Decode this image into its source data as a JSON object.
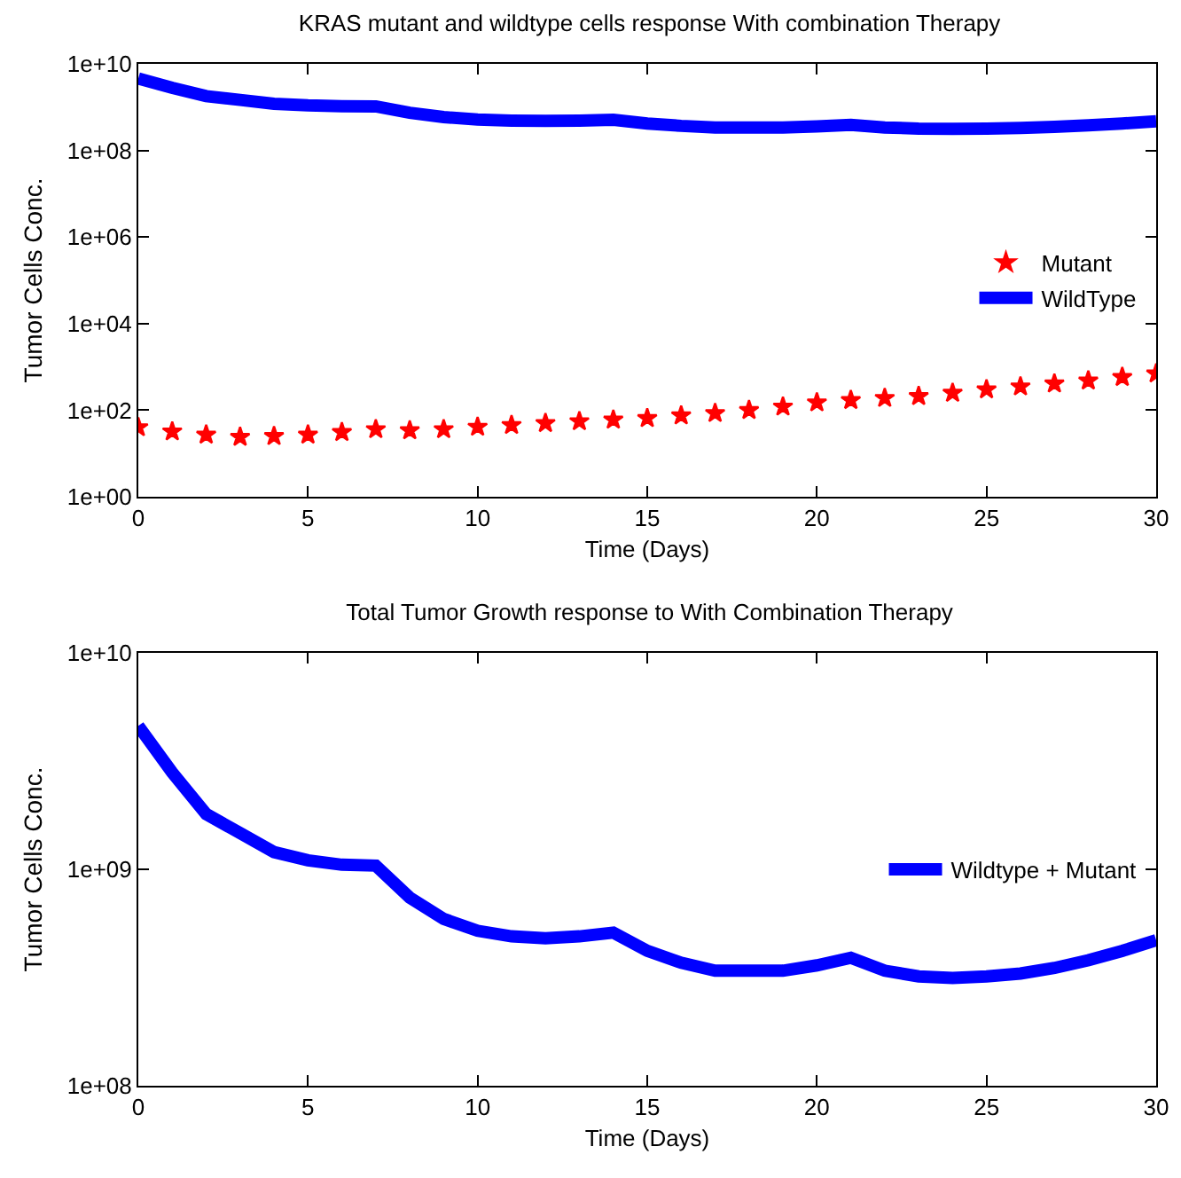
{
  "chart_data": [
    {
      "type": "line",
      "title": "KRAS mutant and wildtype cells response With combination Therapy",
      "xlabel": "Time (Days)",
      "ylabel": "Tumor Cells Conc.",
      "log": "y",
      "grid": false,
      "legend": "right",
      "xlim": [
        0,
        30
      ],
      "xticks": [
        0,
        5,
        10,
        15,
        20,
        25,
        30
      ],
      "ylim": [
        1,
        10000000000
      ],
      "yticks": [
        {
          "value": 1,
          "label": "1e+00"
        },
        {
          "value": 100,
          "label": "1e+02"
        },
        {
          "value": 10000,
          "label": "1e+04"
        },
        {
          "value": 1000000,
          "label": "1e+06"
        },
        {
          "value": 100000000,
          "label": "1e+08"
        },
        {
          "value": 10000000000,
          "label": "1e+10"
        }
      ],
      "x": [
        0,
        1,
        2,
        3,
        4,
        5,
        6,
        7,
        8,
        9,
        10,
        11,
        12,
        13,
        14,
        15,
        16,
        17,
        18,
        19,
        20,
        21,
        22,
        23,
        24,
        25,
        26,
        27,
        28,
        29,
        30
      ],
      "series": [
        {
          "name": "Mutant",
          "type": "scatter",
          "marker": "star",
          "color": "#ff0000",
          "values": [
            40,
            32,
            27,
            24,
            25,
            27,
            31,
            36,
            34,
            36,
            41,
            45,
            50,
            55,
            60,
            65,
            75,
            85,
            100,
            120,
            150,
            170,
            190,
            210,
            250,
            300,
            350,
            410,
            480,
            580,
            700
          ]
        },
        {
          "name": "WildType",
          "marker": "none",
          "color": "#0000ff",
          "values": [
            4600000000,
            2800000000,
            1800000000,
            1470000000,
            1200000000,
            1100000000,
            1050000000,
            1040000000,
            740000000,
            590000000,
            520000000,
            490000000,
            480000000,
            490000000,
            510000000,
            420000000,
            370000000,
            340000000,
            340000000,
            340000000,
            360000000,
            390000000,
            340000000,
            320000000,
            315000000,
            320000000,
            330000000,
            350000000,
            380000000,
            420000000,
            470000000
          ]
        }
      ]
    },
    {
      "type": "line",
      "title": "Total Tumor Growth response to With Combination Therapy",
      "xlabel": "Time (Days)",
      "ylabel": "Tumor Cells Conc.",
      "log": "y",
      "grid": false,
      "legend": "right",
      "xlim": [
        0,
        30
      ],
      "xticks": [
        0,
        5,
        10,
        15,
        20,
        25,
        30
      ],
      "ylim": [
        100000000,
        10000000000
      ],
      "yticks": [
        {
          "value": 100000000,
          "label": "1e+08"
        },
        {
          "value": 1000000000,
          "label": "1e+09"
        },
        {
          "value": 10000000000,
          "label": "1e+10"
        }
      ],
      "x": [
        0,
        1,
        2,
        3,
        4,
        5,
        6,
        7,
        8,
        9,
        10,
        11,
        12,
        13,
        14,
        15,
        16,
        17,
        18,
        19,
        20,
        21,
        22,
        23,
        24,
        25,
        26,
        27,
        28,
        29,
        30
      ],
      "series": [
        {
          "name": "Wildtype + Mutant",
          "marker": "none",
          "color": "#0000ff",
          "values": [
            4600000000,
            2800000000,
            1800000000,
            1470000000,
            1200000000,
            1100000000,
            1050000000,
            1040000000,
            740000000,
            590000000,
            520000000,
            490000000,
            480000000,
            490000000,
            510000000,
            420000000,
            370000000,
            340000000,
            340000000,
            340000000,
            360000000,
            390000000,
            340000000,
            320000000,
            315000000,
            320000000,
            330000000,
            350000000,
            380000000,
            420000000,
            470000000
          ]
        }
      ]
    }
  ]
}
